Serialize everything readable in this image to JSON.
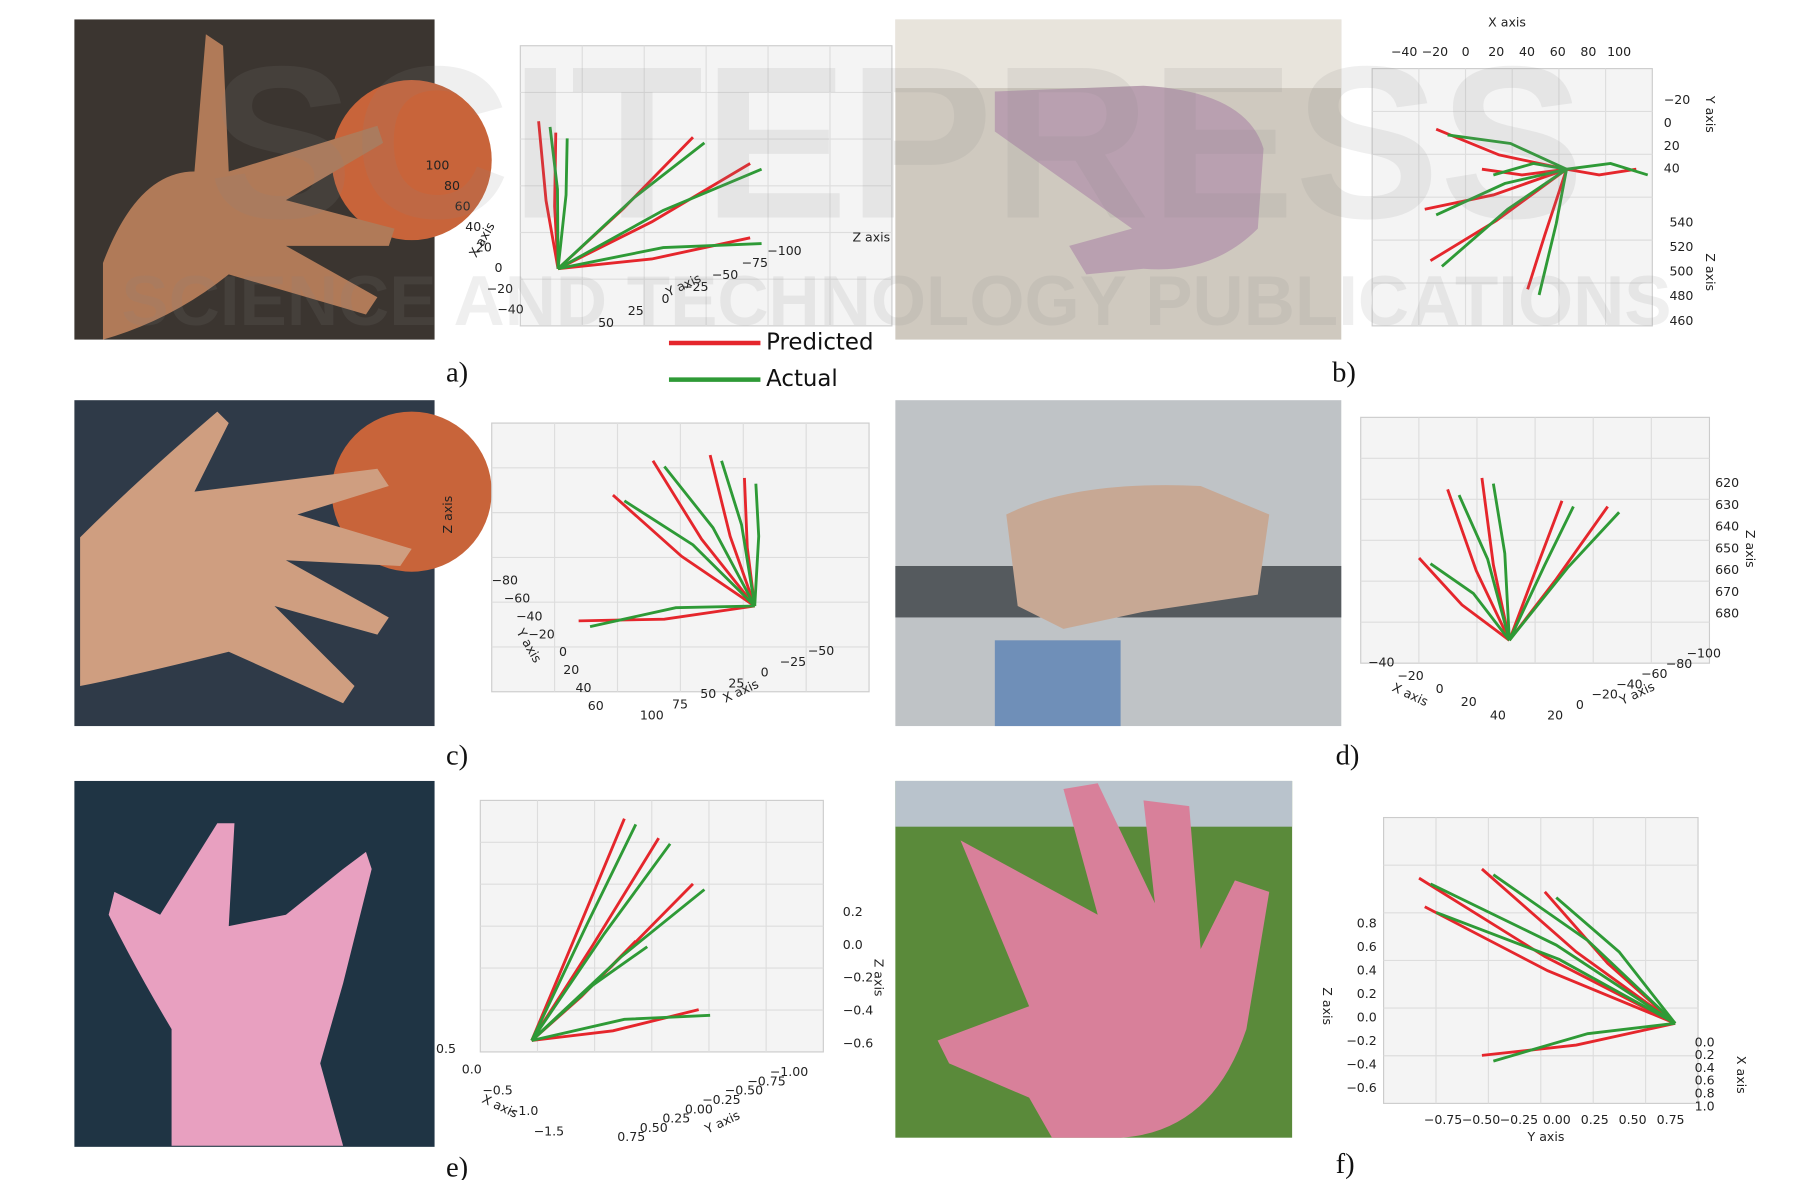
{
  "watermark": {
    "title": "SCITEPRESS",
    "subtitle": "SCIENCE AND TECHNOLOGY PUBLICATIONS"
  },
  "legend": {
    "items": [
      {
        "name": "Predicted",
        "color": "#e5262c"
      },
      {
        "name": "Actual",
        "color": "#2e9a36"
      }
    ]
  },
  "panels": [
    {
      "label": "a)",
      "plot": {
        "axes": [
          {
            "label": "X axis",
            "ticks": [
              "100",
              "80",
              "60",
              "40",
              "20",
              "0",
              "−20",
              "−40"
            ]
          },
          {
            "label": "Y axis",
            "ticks": [
              "50",
              "25",
              "0",
              "−25",
              "−50",
              "−75",
              "−100"
            ]
          },
          {
            "label": "Z axis",
            "ticks": []
          }
        ]
      }
    },
    {
      "label": "b)",
      "plot": {
        "axes": [
          {
            "label": "X axis",
            "ticks": [
              "−40",
              "−20",
              "0",
              "20",
              "40",
              "60",
              "80",
              "100"
            ]
          },
          {
            "label": "Y axis",
            "ticks": [
              "−20",
              "0",
              "20",
              "40"
            ]
          },
          {
            "label": "Z axis",
            "ticks": [
              "540",
              "520",
              "500",
              "480",
              "460"
            ]
          }
        ]
      }
    },
    {
      "label": "c)",
      "plot": {
        "axes": [
          {
            "label": "Z axis",
            "ticks": []
          },
          {
            "label": "Y axis",
            "ticks": [
              "−80",
              "−60",
              "−40",
              "−20",
              "0",
              "20",
              "40",
              "60"
            ]
          },
          {
            "label": "X axis",
            "ticks": [
              "100",
              "75",
              "50",
              "25",
              "0",
              "−25",
              "−50"
            ]
          }
        ]
      }
    },
    {
      "label": "d)",
      "plot": {
        "axes": [
          {
            "label": "X axis",
            "ticks": [
              "−40",
              "−20",
              "0",
              "20",
              "40"
            ]
          },
          {
            "label": "Y axis",
            "ticks": [
              "20",
              "0",
              "−20",
              "−40",
              "−60",
              "−80",
              "−100"
            ]
          },
          {
            "label": "Z axis",
            "ticks": [
              "620",
              "630",
              "640",
              "650",
              "660",
              "670",
              "680"
            ]
          }
        ]
      }
    },
    {
      "label": "e)",
      "plot": {
        "axes": [
          {
            "label": "X axis",
            "ticks": [
              "0.5",
              "0.0",
              "−0.5",
              "−1.0",
              "−1.5"
            ]
          },
          {
            "label": "Y axis",
            "ticks": [
              "0.75",
              "0.50",
              "0.25",
              "0.00",
              "−0.25",
              "−0.50",
              "−0.75",
              "−1.00"
            ]
          },
          {
            "label": "Z axis",
            "ticks": [
              "0.2",
              "0.0",
              "−0.2",
              "−0.4",
              "−0.6"
            ]
          }
        ]
      }
    },
    {
      "label": "f)",
      "plot": {
        "axes": [
          {
            "label": "Z axis",
            "ticks": [
              "0.8",
              "0.6",
              "0.4",
              "0.2",
              "0.0",
              "−0.2",
              "−0.4",
              "−0.6"
            ]
          },
          {
            "label": "Y axis",
            "ticks": [
              "−0.75",
              "−0.50",
              "−0.25",
              "0.00",
              "0.25",
              "0.50",
              "0.75"
            ]
          },
          {
            "label": "X axis",
            "ticks": [
              "0.0",
              "0.2",
              "0.4",
              "0.6",
              "0.8",
              "1.0"
            ]
          }
        ]
      }
    }
  ]
}
